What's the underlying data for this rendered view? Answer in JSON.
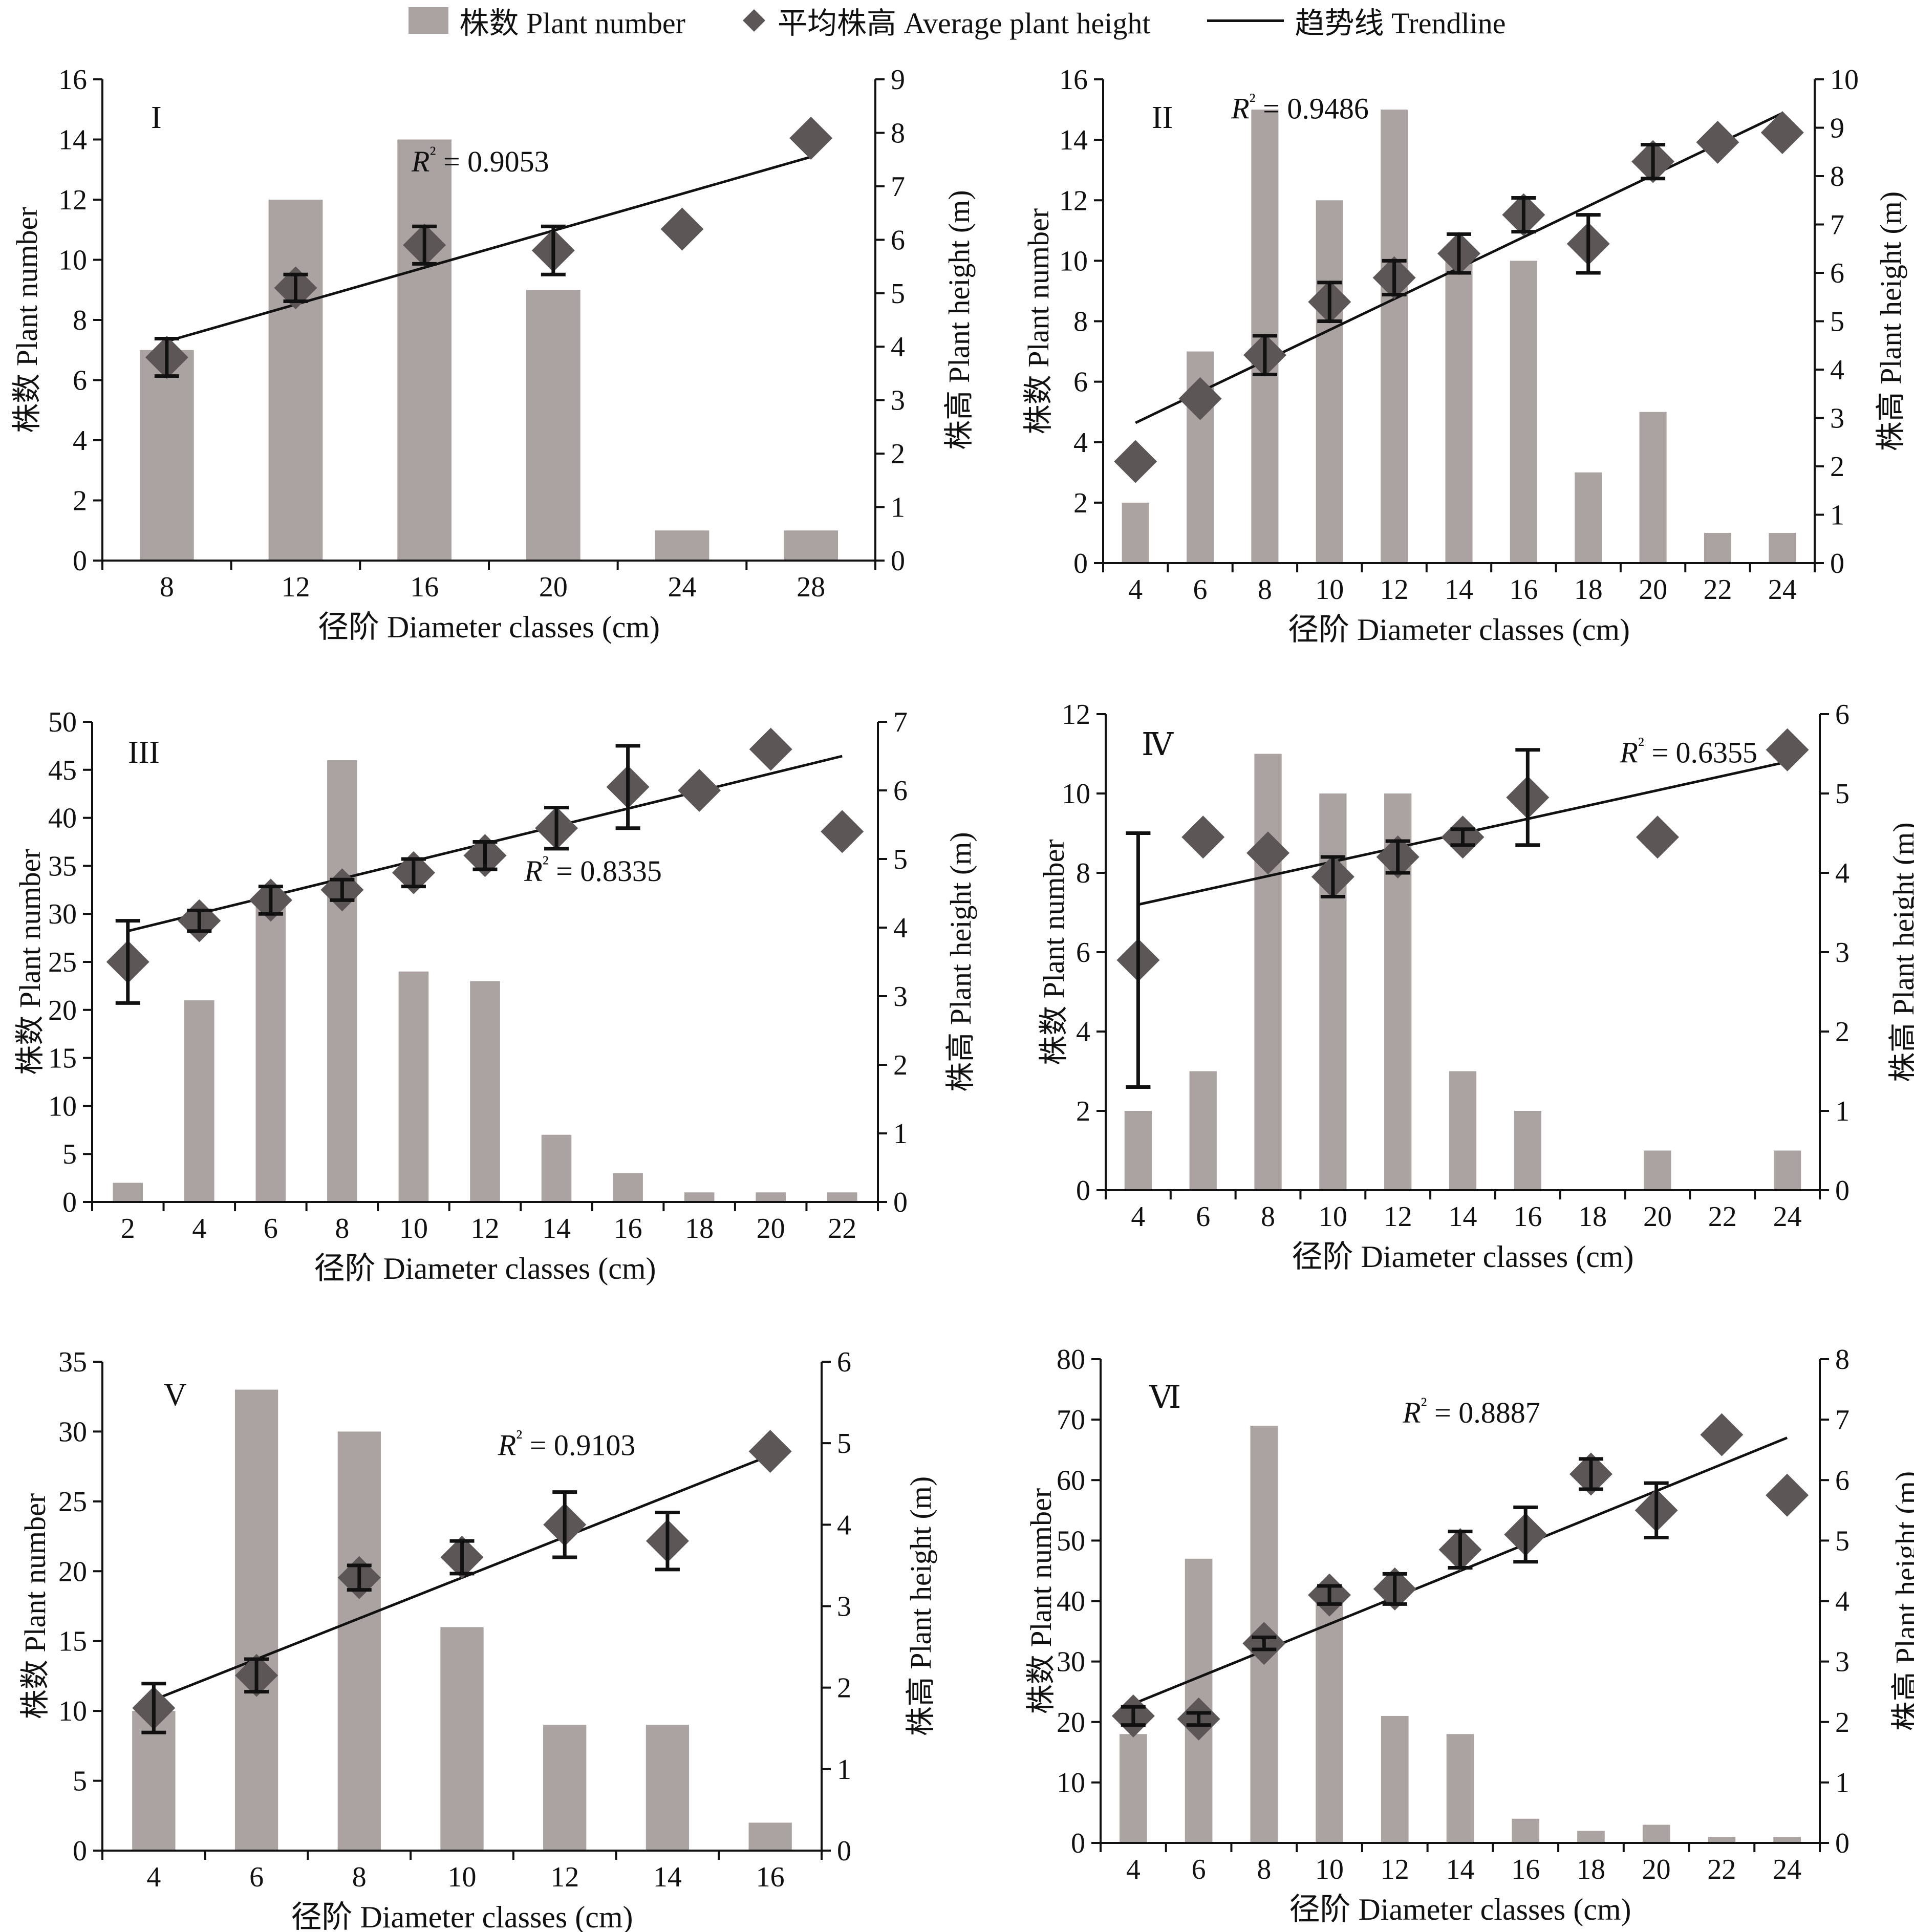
{
  "colors": {
    "bar": "#aaa3a1",
    "marker": "#5c5756",
    "line": "#111111",
    "axis": "#111111"
  },
  "legend": {
    "bar_label": "株数 Plant number",
    "marker_label": "平均株高 Average plant height",
    "line_label": "趋势线 Trendline"
  },
  "chart_data": [
    {
      "type": "bar",
      "panel": "I",
      "categories": [
        8,
        12,
        16,
        20,
        24,
        28
      ],
      "tick_step": 1,
      "series": [
        {
          "name": "株数 Plant number",
          "axis": "left",
          "values": [
            7,
            12,
            14,
            9,
            1,
            1
          ]
        },
        {
          "name": "平均株高 Average plant height",
          "axis": "right",
          "marker": "diamond",
          "values": [
            3.8,
            5.1,
            5.9,
            5.8,
            6.2,
            7.9
          ],
          "errors": [
            0.35,
            0.25,
            0.35,
            0.45,
            0,
            0
          ]
        }
      ],
      "trendline": {
        "start": [
          8,
          4.1
        ],
        "end": [
          28,
          7.55
        ]
      },
      "r2_label": "R² = 0.9053",
      "xlabel": "径阶 Diameter classes (cm)",
      "ylabel": "株数 Plant number",
      "y2label": "株高 Plant height (m)",
      "ylim": [
        0,
        16
      ],
      "ystep": 2,
      "y2lim": [
        0,
        9
      ],
      "y2step": 1,
      "legend": "top-center"
    },
    {
      "type": "bar",
      "panel": "II",
      "categories": [
        4,
        6,
        8,
        10,
        12,
        14,
        16,
        18,
        20,
        22,
        24
      ],
      "tick_step": 1,
      "series": [
        {
          "name": "株数 Plant number",
          "axis": "left",
          "values": [
            2,
            7,
            15,
            12,
            15,
            10,
            10,
            3,
            5,
            1,
            1
          ]
        },
        {
          "name": "平均株高 Average plant height",
          "axis": "right",
          "marker": "diamond",
          "values": [
            2.1,
            3.4,
            4.3,
            5.4,
            5.9,
            6.4,
            7.2,
            6.6,
            8.3,
            8.7,
            8.9
          ],
          "errors": [
            0,
            0,
            0.4,
            0.4,
            0.35,
            0.4,
            0.35,
            0.6,
            0.35,
            0,
            0
          ]
        }
      ],
      "trendline": {
        "start": [
          4,
          2.9
        ],
        "end": [
          24,
          9.3
        ]
      },
      "r2_label": "R² = 0.9486",
      "xlabel": "径阶 Diameter classes (cm)",
      "ylabel": "株数 Plant number",
      "y2label": "株高 Plant height (m)",
      "ylim": [
        0,
        16
      ],
      "ystep": 2,
      "y2lim": [
        0,
        10
      ],
      "y2step": 1
    },
    {
      "type": "bar",
      "panel": "III",
      "categories": [
        2,
        4,
        6,
        8,
        10,
        12,
        14,
        16,
        18,
        20,
        22
      ],
      "tick_step": 1,
      "series": [
        {
          "name": "株数 Plant number",
          "axis": "left",
          "values": [
            2,
            21,
            31,
            46,
            24,
            23,
            7,
            3,
            1,
            1,
            1
          ]
        },
        {
          "name": "平均株高 Average plant height",
          "axis": "right",
          "marker": "diamond",
          "values": [
            3.5,
            4.1,
            4.4,
            4.55,
            4.8,
            5.05,
            5.45,
            6.05,
            6.0,
            6.6,
            5.4
          ],
          "errors": [
            0.6,
            0.15,
            0.2,
            0.15,
            0.2,
            0.2,
            0.3,
            0.6,
            0,
            0,
            0
          ]
        }
      ],
      "trendline": {
        "start": [
          2,
          3.95
        ],
        "end": [
          22,
          6.5
        ]
      },
      "r2_label": "R² = 0.8335",
      "xlabel": "径阶 Diameter classes (cm)",
      "ylabel": "株数 Plant number",
      "y2label": "株高 Plant height (m)",
      "ylim": [
        0,
        50
      ],
      "ystep": 5,
      "y2lim": [
        0,
        7
      ],
      "y2step": 1
    },
    {
      "type": "bar",
      "panel": "Ⅳ",
      "categories": [
        4,
        6,
        8,
        10,
        12,
        14,
        16,
        18,
        20,
        22,
        24
      ],
      "tick_step": 1,
      "series": [
        {
          "name": "株数 Plant number",
          "axis": "left",
          "values": [
            2,
            3,
            11,
            10,
            10,
            3,
            2,
            0,
            1,
            0,
            1
          ]
        },
        {
          "name": "平均株高 Average plant height",
          "axis": "right",
          "marker": "diamond",
          "values": [
            2.9,
            4.45,
            4.25,
            3.95,
            4.2,
            4.45,
            4.95,
            null,
            4.45,
            null,
            5.55
          ],
          "errors": [
            1.6,
            0,
            0,
            0.25,
            0.2,
            0.1,
            0.6,
            0,
            0,
            0,
            0
          ]
        }
      ],
      "trendline": {
        "start": [
          4,
          3.6
        ],
        "end": [
          24,
          5.4
        ]
      },
      "r2_label": "R² = 0.6355",
      "xlabel": "径阶 Diameter classes (cm)",
      "ylabel": "株数 Plant number",
      "y2label": "株高 Plant height (m)",
      "ylim": [
        0,
        12
      ],
      "ystep": 2,
      "y2lim": [
        0,
        6
      ],
      "y2step": 1
    },
    {
      "type": "bar",
      "panel": "V",
      "categories": [
        4,
        6,
        8,
        10,
        12,
        14,
        16
      ],
      "tick_step": 1,
      "series": [
        {
          "name": "株数 Plant number",
          "axis": "left",
          "values": [
            10,
            33,
            30,
            16,
            9,
            9,
            2
          ]
        },
        {
          "name": "平均株高 Average plant height",
          "axis": "right",
          "marker": "diamond",
          "values": [
            1.75,
            2.15,
            3.35,
            3.6,
            4.0,
            3.8,
            4.9
          ],
          "errors": [
            0.3,
            0.2,
            0.15,
            0.2,
            0.4,
            0.35,
            0
          ]
        }
      ],
      "trendline": {
        "start": [
          4,
          1.85
        ],
        "end": [
          16,
          4.85
        ]
      },
      "r2_label": "R² = 0.9103",
      "xlabel": "径阶 Diameter classes (cm)",
      "ylabel": "株数 Plant number",
      "y2label": "株高 Plant height (m)",
      "ylim": [
        0,
        35
      ],
      "ystep": 5,
      "y2lim": [
        0,
        6
      ],
      "y2step": 1
    },
    {
      "type": "bar",
      "panel": "Ⅵ",
      "categories": [
        4,
        6,
        8,
        10,
        12,
        14,
        16,
        18,
        20,
        22,
        24
      ],
      "tick_step": 1,
      "series": [
        {
          "name": "株数 Plant number",
          "axis": "left",
          "values": [
            18,
            47,
            69,
            40,
            21,
            18,
            4,
            2,
            3,
            1,
            1
          ]
        },
        {
          "name": "平均株高 Average plant height",
          "axis": "right",
          "marker": "diamond",
          "values": [
            2.1,
            2.05,
            3.3,
            4.1,
            4.2,
            4.85,
            5.1,
            6.1,
            5.5,
            6.75,
            5.75
          ],
          "errors": [
            0.15,
            0.1,
            0.1,
            0.15,
            0.25,
            0.3,
            0.45,
            0.25,
            0.45,
            0,
            0
          ]
        }
      ],
      "trendline": {
        "start": [
          4,
          2.3
        ],
        "end": [
          24,
          6.7
        ]
      },
      "r2_label": "R² = 0.8887",
      "xlabel": "径阶 Diameter classes (cm)",
      "ylabel": "株数 Plant  number",
      "y2label": "株高 Plant height (m)",
      "ylim": [
        0,
        80
      ],
      "ystep": 10,
      "y2lim": [
        0,
        8
      ],
      "y2step": 1
    }
  ]
}
